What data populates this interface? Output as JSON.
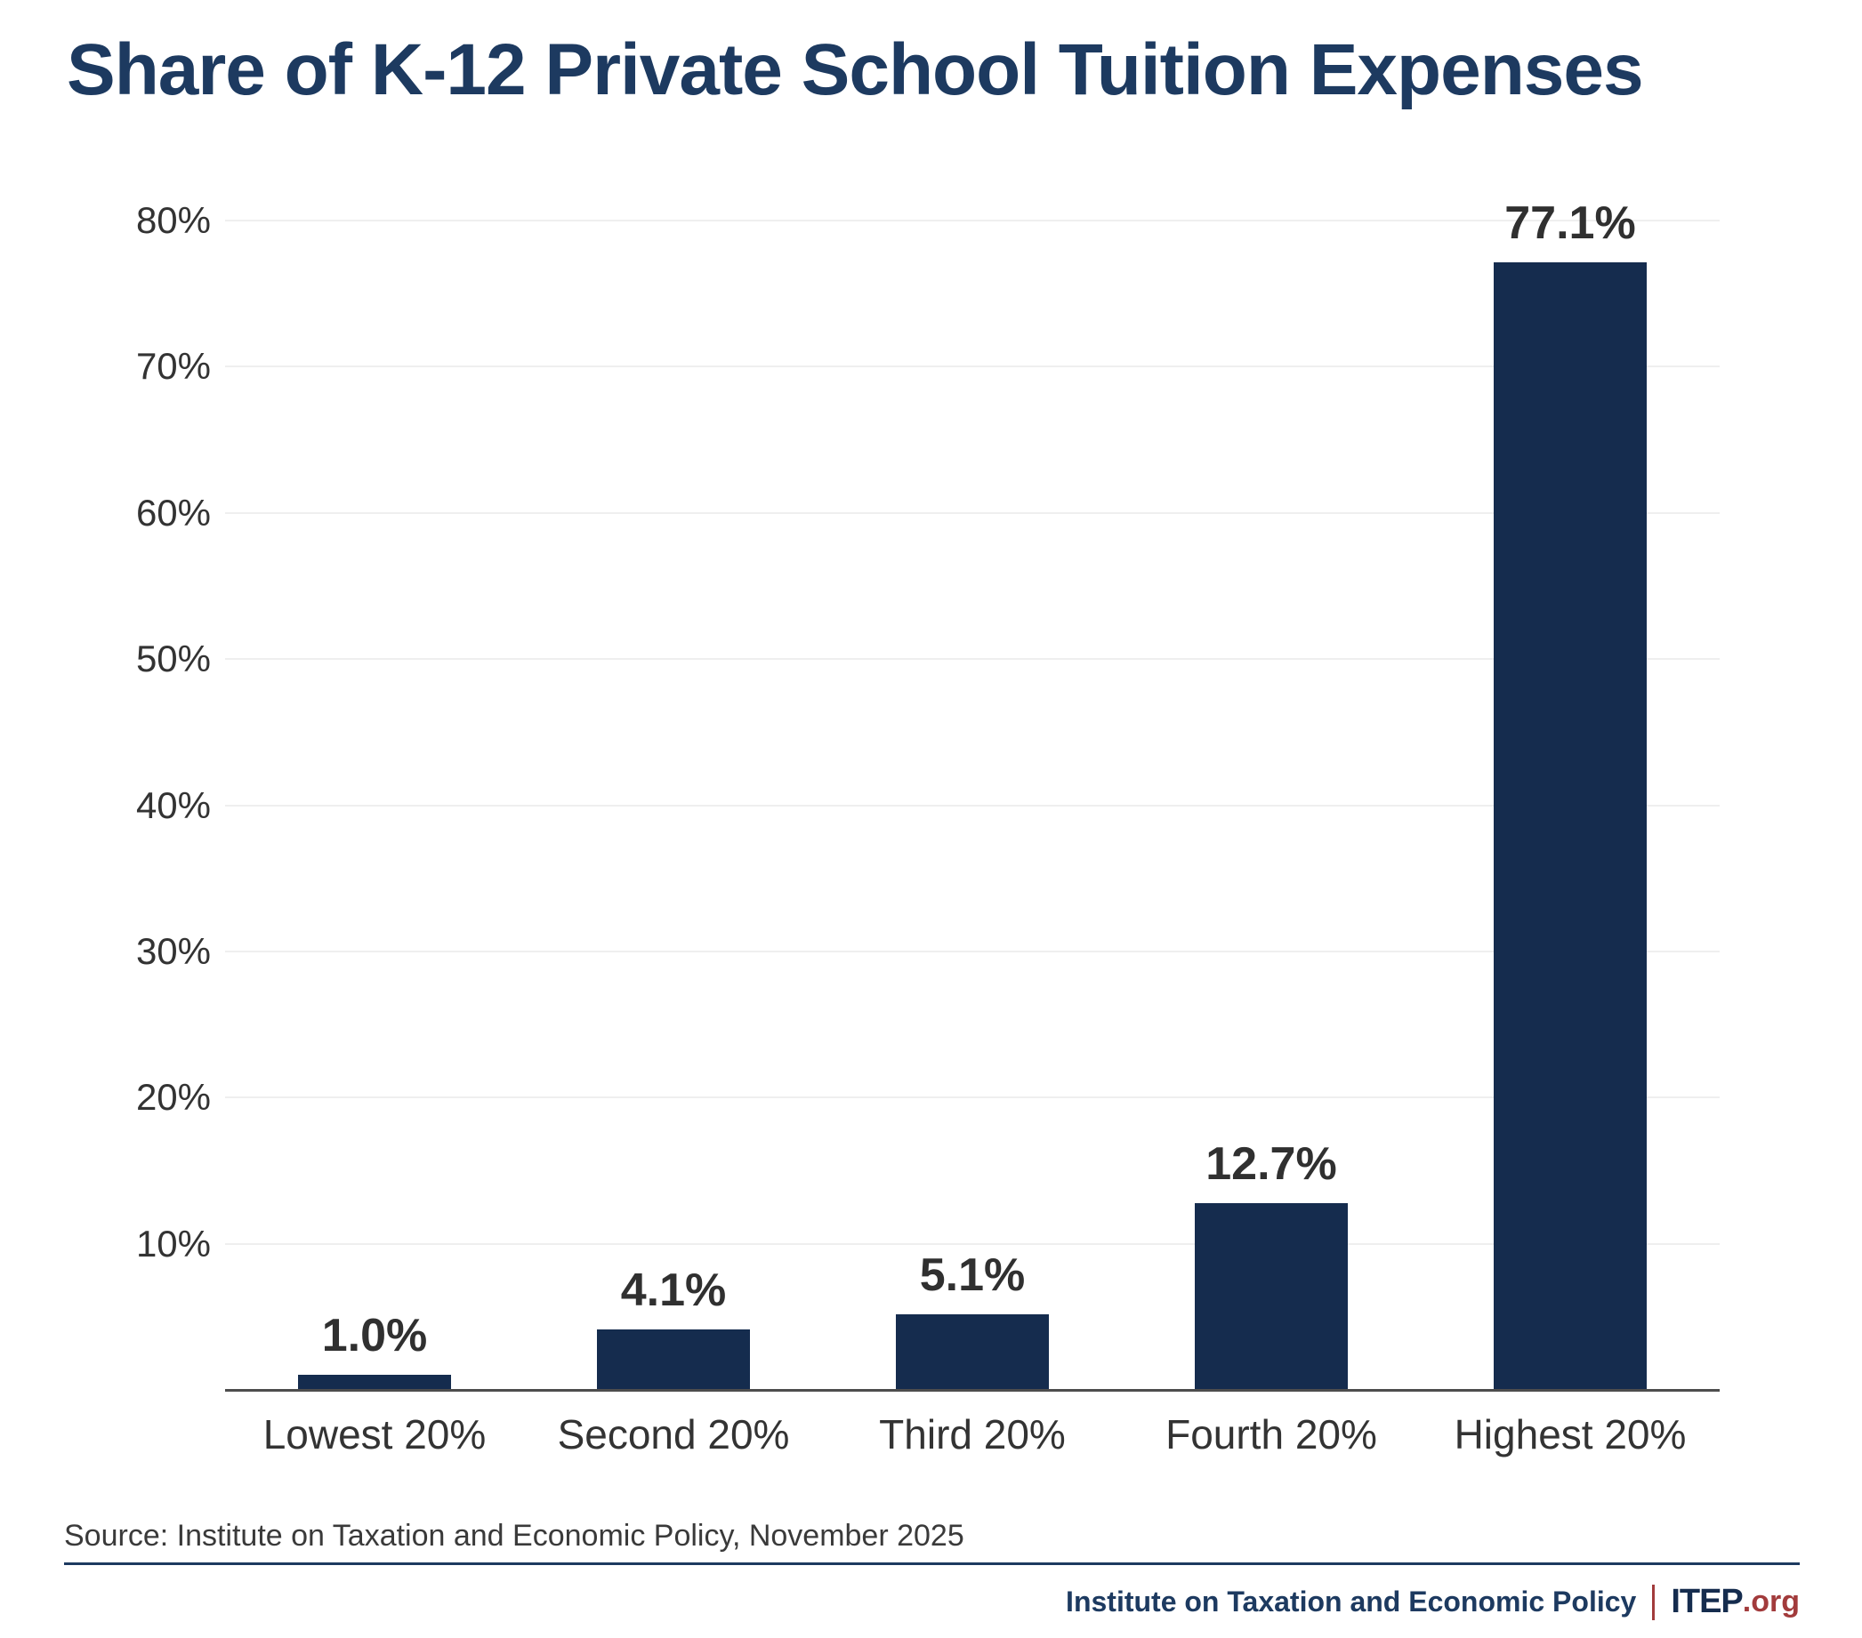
{
  "title": "Share of K-12 Private School Tuition Expenses",
  "chart_data": {
    "type": "bar",
    "categories": [
      "Lowest 20%",
      "Second 20%",
      "Third 20%",
      "Fourth 20%",
      "Highest 20%"
    ],
    "values": [
      1.0,
      4.1,
      5.1,
      12.7,
      77.1
    ],
    "value_labels": [
      "1.0%",
      "4.1%",
      "5.1%",
      "12.7%",
      "77.1%"
    ],
    "y_ticks": [
      10,
      20,
      30,
      40,
      50,
      60,
      70,
      80
    ],
    "y_tick_labels": [
      "10%",
      "20%",
      "30%",
      "40%",
      "50%",
      "60%",
      "70%",
      "80%"
    ],
    "ylim": [
      0,
      80
    ],
    "grid": true,
    "legend": "none",
    "title": "Share of K-12 Private School Tuition Expenses",
    "xlabel": "",
    "ylabel": ""
  },
  "source": "Source: Institute on Taxation and Economic Policy, November 2025",
  "footer": {
    "org": "Institute on Taxation and Economic Policy",
    "brand": "ITEP",
    "brand_suffix": ".org"
  },
  "colors": {
    "bar": "#152C4E",
    "navy": "#1D3A60",
    "red": "#A23B3C",
    "label_text": "#303030",
    "axis_text": "#333333",
    "gridline": "#EFEFEF",
    "axis_line": "#4D4D4D"
  }
}
